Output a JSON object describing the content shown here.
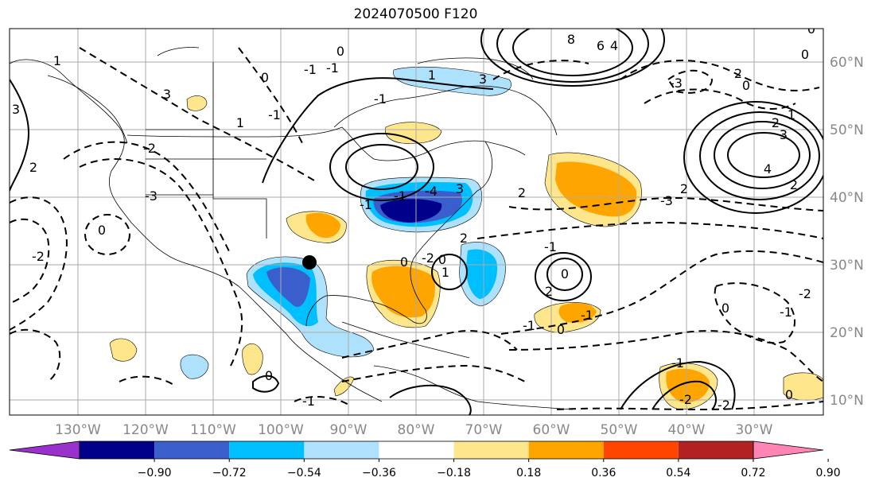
{
  "title": "2024070500 F120",
  "map": {
    "longitude_labels": [
      "130°W",
      "120°W",
      "110°W",
      "100°W",
      "90°W",
      "80°W",
      "70°W",
      "60°W",
      "50°W",
      "40°W",
      "30°W"
    ],
    "latitude_labels": [
      "60°N",
      "50°N",
      "40°N",
      "30°N",
      "20°N",
      "10°N"
    ],
    "contour_labels": [
      "3",
      "2",
      "-2",
      "3",
      "1",
      "8",
      "6",
      "4",
      "3",
      "1",
      "0",
      "-1",
      "2",
      "3",
      "4",
      "2",
      "1",
      "0",
      "-3",
      "2",
      "0",
      "2",
      "-3",
      "-4",
      "-1",
      "3",
      "2",
      "2",
      "-2",
      "1",
      "-1",
      "0",
      "2",
      "-1",
      "0",
      "-1",
      "0",
      "-2",
      "-1",
      "-1",
      "-2",
      "-2",
      "0",
      "0",
      "-1",
      "-1",
      "0",
      "-3",
      "-2",
      "1",
      "-1",
      "0",
      "-1",
      "0",
      "0",
      "-1",
      "0"
    ],
    "marker": "black-dot",
    "colors": {
      "light_blue": "#aee1fb",
      "sky_blue": "#00bfff",
      "medium_blue": "#3a5fcd",
      "navy": "#00008b",
      "purple": "#9932cc",
      "light_yellow": "#fde68b",
      "orange": "#ffa500",
      "orange_red": "#ff4500",
      "dark_red": "#b22222",
      "pink": "#ff85b4"
    }
  },
  "colorbar": {
    "ticks": [
      "−0.90",
      "−0.72",
      "−0.54",
      "−0.36",
      "−0.18",
      "0.18",
      "0.36",
      "0.54",
      "0.72",
      "0.90"
    ],
    "bins": [
      "#9932cc",
      "#00008b",
      "#3a5fcd",
      "#00bfff",
      "#aee1fb",
      "#ffffff",
      "#fde68b",
      "#ffa500",
      "#ff4500",
      "#b22222",
      "#ff85b4"
    ]
  }
}
